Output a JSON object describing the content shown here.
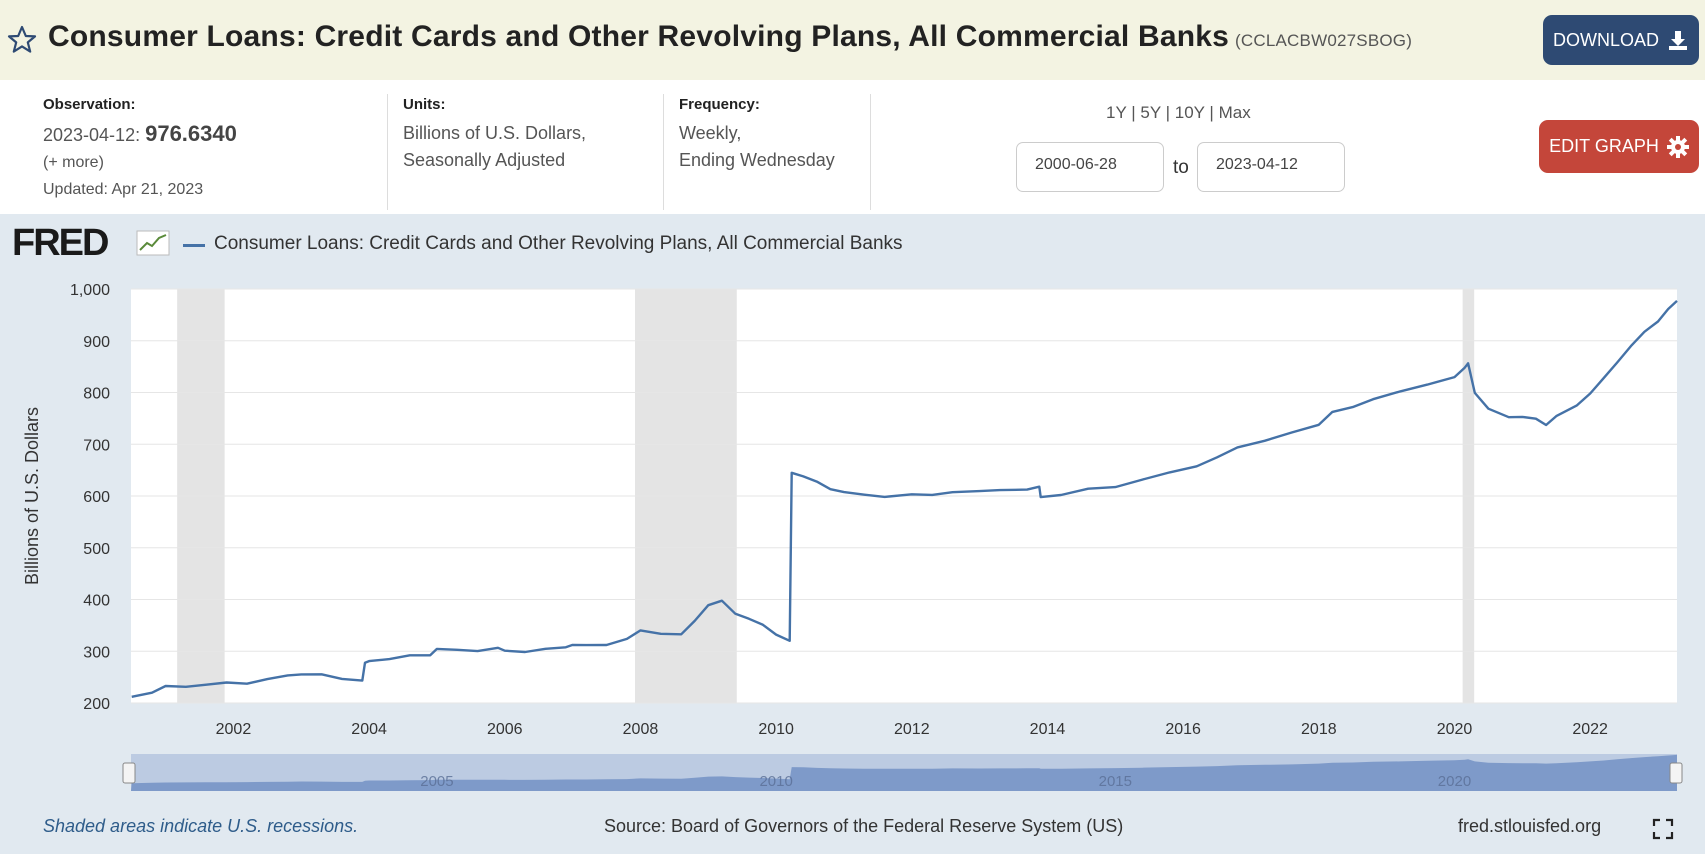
{
  "header": {
    "title": "Consumer Loans: Credit Cards and Other Revolving Plans, All Commercial Banks",
    "series_id": "(CCLACBW027SBOG)",
    "download_label": "DOWNLOAD"
  },
  "meta": {
    "observation_label": "Observation:",
    "observation_date": "2023-04-12:",
    "observation_value": "976.6340",
    "more": "(+ more)",
    "updated": "Updated: Apr 21, 2023",
    "units_label": "Units:",
    "units_line1": "Billions of U.S. Dollars,",
    "units_line2": "Seasonally Adjusted",
    "frequency_label": "Frequency:",
    "frequency_line1": "Weekly,",
    "frequency_line2": "Ending Wednesday",
    "ranges": [
      "1Y",
      "5Y",
      "10Y",
      "Max"
    ],
    "start_date": "2000-06-28",
    "to_label": "to",
    "end_date": "2023-04-12",
    "edit_label": "EDIT GRAPH"
  },
  "graph": {
    "logo": "FRED",
    "legend": "Consumer Loans: Credit Cards and Other Revolving Plans, All Commercial Banks",
    "recession_note": "Shaded areas indicate U.S. recessions.",
    "source": "Source: Board of Governors of the Federal Reserve System (US)",
    "site": "fred.stlouisfed.org"
  },
  "colors": {
    "line": "#4572a7",
    "recession": "#e4e4e4",
    "panel": "#e1e9f0",
    "download": "#2e4a73",
    "edit": "#c4463a"
  },
  "chart_data": {
    "type": "line",
    "ylabel": "Billions of U.S. Dollars",
    "ylim": [
      200,
      1000
    ],
    "yticks": [
      200,
      300,
      400,
      500,
      600,
      700,
      800,
      900,
      1000
    ],
    "ytick_labels": [
      "200",
      "300",
      "400",
      "500",
      "600",
      "700",
      "800",
      "900",
      "1,000"
    ],
    "xlim": [
      2000.49,
      2023.28
    ],
    "xticks": [
      2002,
      2004,
      2006,
      2008,
      2010,
      2012,
      2014,
      2016,
      2018,
      2020,
      2022
    ],
    "grid": true,
    "recessions": [
      [
        2001.17,
        2001.87
      ],
      [
        2007.92,
        2009.42
      ],
      [
        2020.12,
        2020.29
      ]
    ],
    "navigator_labels": [
      "2005",
      "2010",
      "2015",
      "2020"
    ],
    "series": [
      {
        "values": [
          [
            2000.5,
            212
          ],
          [
            2000.8,
            222
          ],
          [
            2001.0,
            230
          ],
          [
            2001.3,
            233
          ],
          [
            2001.6,
            236
          ],
          [
            2001.9,
            237
          ],
          [
            2002.2,
            240
          ],
          [
            2002.5,
            245
          ],
          [
            2002.8,
            252
          ],
          [
            2003.0,
            258
          ],
          [
            2003.3,
            253
          ],
          [
            2003.6,
            247
          ],
          [
            2003.9,
            245
          ],
          [
            2003.94,
            275
          ],
          [
            2004.0,
            283
          ],
          [
            2004.3,
            285
          ],
          [
            2004.6,
            290
          ],
          [
            2004.9,
            295
          ],
          [
            2005.0,
            303
          ],
          [
            2005.3,
            302
          ],
          [
            2005.6,
            303
          ],
          [
            2005.9,
            304
          ],
          [
            2006.0,
            302
          ],
          [
            2006.3,
            300
          ],
          [
            2006.6,
            302
          ],
          [
            2006.9,
            310
          ],
          [
            2007.0,
            312
          ],
          [
            2007.2,
            310
          ],
          [
            2007.5,
            315
          ],
          [
            2007.8,
            322
          ],
          [
            2008.0,
            340
          ],
          [
            2008.3,
            336
          ],
          [
            2008.6,
            330
          ],
          [
            2008.8,
            360
          ],
          [
            2009.0,
            390
          ],
          [
            2009.2,
            395
          ],
          [
            2009.4,
            375
          ],
          [
            2009.6,
            362
          ],
          [
            2009.8,
            350
          ],
          [
            2010.0,
            335
          ],
          [
            2010.2,
            318
          ],
          [
            2010.23,
            645
          ],
          [
            2010.4,
            640
          ],
          [
            2010.6,
            625
          ],
          [
            2010.8,
            615
          ],
          [
            2011.0,
            608
          ],
          [
            2011.3,
            600
          ],
          [
            2011.6,
            601
          ],
          [
            2012.0,
            602
          ],
          [
            2012.3,
            601
          ],
          [
            2012.6,
            610
          ],
          [
            2013.0,
            607
          ],
          [
            2013.3,
            612
          ],
          [
            2013.7,
            614
          ],
          [
            2013.88,
            615
          ],
          [
            2013.9,
            600
          ],
          [
            2014.2,
            602
          ],
          [
            2014.6,
            612
          ],
          [
            2015.0,
            620
          ],
          [
            2015.4,
            630
          ],
          [
            2015.8,
            645
          ],
          [
            2016.2,
            660
          ],
          [
            2016.5,
            672
          ],
          [
            2016.8,
            695
          ],
          [
            2017.2,
            708
          ],
          [
            2017.6,
            720
          ],
          [
            2018.0,
            740
          ],
          [
            2018.2,
            762
          ],
          [
            2018.5,
            770
          ],
          [
            2018.8,
            790
          ],
          [
            2019.2,
            800
          ],
          [
            2019.6,
            815
          ],
          [
            2020.0,
            832
          ],
          [
            2020.15,
            845
          ],
          [
            2020.2,
            858
          ],
          [
            2020.3,
            800
          ],
          [
            2020.5,
            766
          ],
          [
            2020.8,
            755
          ],
          [
            2021.0,
            752
          ],
          [
            2021.2,
            748
          ],
          [
            2021.35,
            740
          ],
          [
            2021.5,
            752
          ],
          [
            2021.8,
            775
          ],
          [
            2022.0,
            800
          ],
          [
            2022.2,
            825
          ],
          [
            2022.4,
            860
          ],
          [
            2022.6,
            890
          ],
          [
            2022.8,
            915
          ],
          [
            2023.0,
            940
          ],
          [
            2023.15,
            960
          ],
          [
            2023.28,
            977
          ]
        ]
      }
    ]
  }
}
